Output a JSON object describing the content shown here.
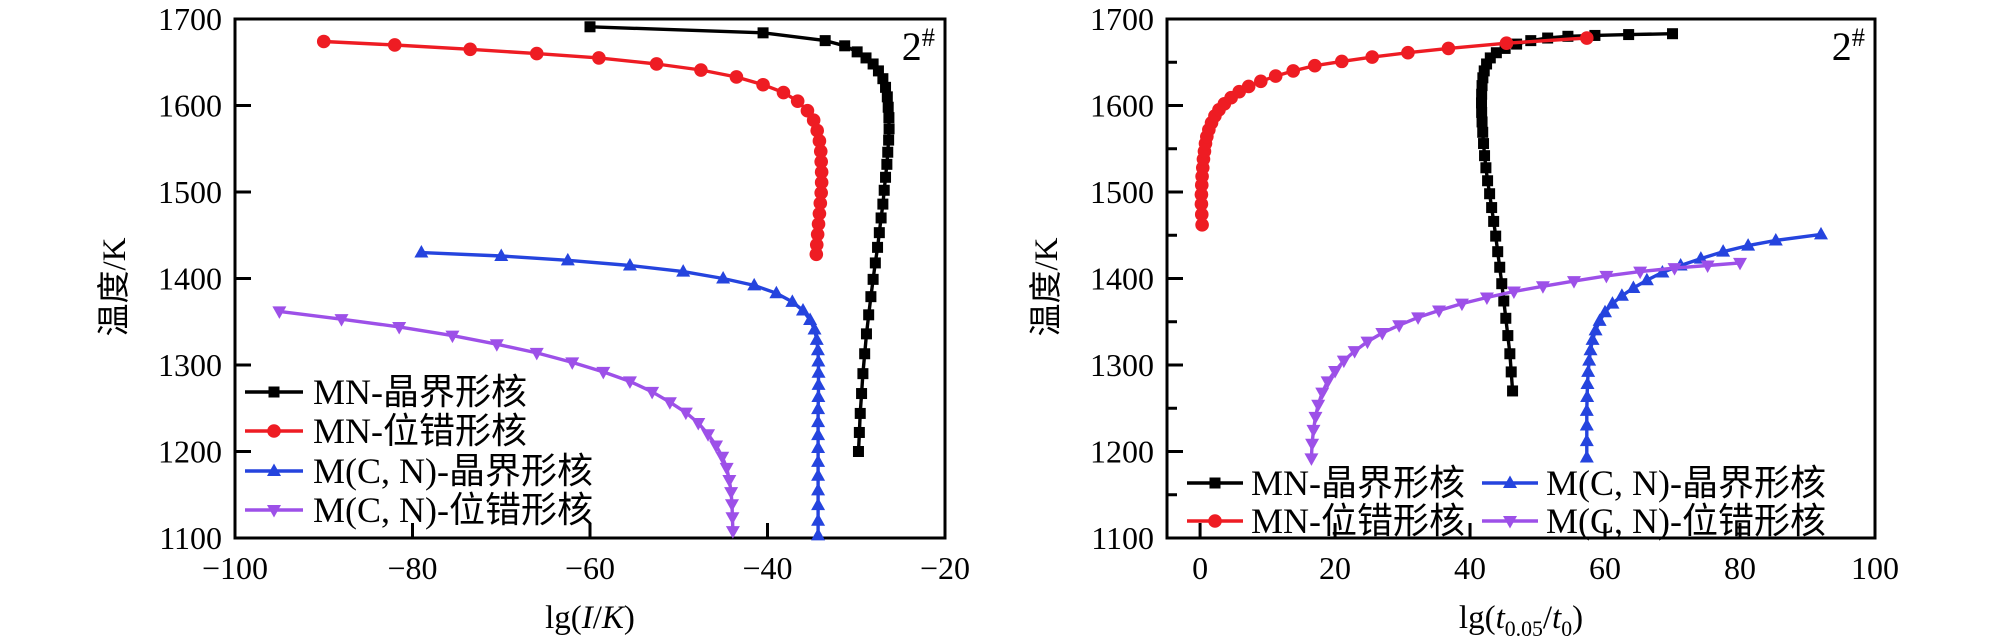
{
  "figure": {
    "background": "#ffffff",
    "text_color": "#000000"
  },
  "chart_data": [
    {
      "type": "line",
      "id": "left-chart",
      "title": "",
      "xlabel_plain": "lg(I/K)",
      "xlabel_segments": [
        {
          "t": "lg("
        },
        {
          "t": "I",
          "italic": true
        },
        {
          "t": "/"
        },
        {
          "t": "K",
          "italic": true
        },
        {
          "t": ")"
        }
      ],
      "ylabel": "温度/K",
      "xlim": [
        -100,
        -20
      ],
      "ylim": [
        1100,
        1700
      ],
      "x_major_ticks": [
        -100,
        -80,
        -60,
        -40,
        -20
      ],
      "x_minor_ticks": [],
      "y_major_ticks": [
        1100,
        1200,
        1300,
        1400,
        1500,
        1600,
        1700
      ],
      "y_minor_ticks": [],
      "grid": false,
      "legend_position": "lower-left",
      "annotation": {
        "text": "2#",
        "segments": [
          {
            "t": "2"
          },
          {
            "t": "#",
            "sup": true
          }
        ],
        "color": "#ee1c23",
        "position": "top-right"
      },
      "series": [
        {
          "key": "mn-grain-boundary",
          "name": "MN-晶界形核",
          "color": "#000000",
          "marker": "square",
          "points": [
            [
              -60,
              1691
            ],
            [
              -40.5,
              1684
            ],
            [
              -33.5,
              1675
            ],
            [
              -31.3,
              1669
            ],
            [
              -29.9,
              1662
            ],
            [
              -28.9,
              1655
            ],
            [
              -28.1,
              1648
            ],
            [
              -27.5,
              1640
            ],
            [
              -27.0,
              1631
            ],
            [
              -26.7,
              1621
            ],
            [
              -26.5,
              1610
            ],
            [
              -26.4,
              1598
            ],
            [
              -26.32,
              1586
            ],
            [
              -26.3,
              1573
            ],
            [
              -26.35,
              1560
            ],
            [
              -26.45,
              1546
            ],
            [
              -26.55,
              1532
            ],
            [
              -26.7,
              1517
            ],
            [
              -26.85,
              1502
            ],
            [
              -27.0,
              1486
            ],
            [
              -27.2,
              1470
            ],
            [
              -27.4,
              1453
            ],
            [
              -27.6,
              1436
            ],
            [
              -27.85,
              1418
            ],
            [
              -28.1,
              1399
            ],
            [
              -28.35,
              1379
            ],
            [
              -28.6,
              1358
            ],
            [
              -28.85,
              1336
            ],
            [
              -29.05,
              1313
            ],
            [
              -29.25,
              1290
            ],
            [
              -29.4,
              1267
            ],
            [
              -29.55,
              1244
            ],
            [
              -29.65,
              1222
            ],
            [
              -29.75,
              1200
            ]
          ]
        },
        {
          "key": "mn-dislocation",
          "name": "MN-位错形核",
          "color": "#ee1c23",
          "marker": "circle",
          "points": [
            [
              -90,
              1674
            ],
            [
              -82,
              1670
            ],
            [
              -73.5,
              1665
            ],
            [
              -66,
              1660
            ],
            [
              -59,
              1655
            ],
            [
              -52.5,
              1648
            ],
            [
              -47.5,
              1641
            ],
            [
              -43.5,
              1633
            ],
            [
              -40.5,
              1624
            ],
            [
              -38.2,
              1615
            ],
            [
              -36.6,
              1605
            ],
            [
              -35.5,
              1594
            ],
            [
              -34.8,
              1583
            ],
            [
              -34.4,
              1571
            ],
            [
              -34.15,
              1559
            ],
            [
              -34.0,
              1547
            ],
            [
              -33.95,
              1535
            ],
            [
              -33.9,
              1523
            ],
            [
              -33.9,
              1511
            ],
            [
              -33.95,
              1499
            ],
            [
              -34.05,
              1487
            ],
            [
              -34.15,
              1475
            ],
            [
              -34.25,
              1463
            ],
            [
              -34.35,
              1451
            ],
            [
              -34.45,
              1439
            ],
            [
              -34.5,
              1428
            ]
          ]
        },
        {
          "key": "mcn-grain-boundary",
          "name": "M(C, N)-晶界形核",
          "color": "#2544de",
          "marker": "triangle-up",
          "points": [
            [
              -79,
              1430
            ],
            [
              -70,
              1426
            ],
            [
              -62.5,
              1421
            ],
            [
              -55.5,
              1415
            ],
            [
              -49.5,
              1408
            ],
            [
              -45,
              1400
            ],
            [
              -41.5,
              1392
            ],
            [
              -39,
              1383
            ],
            [
              -37.2,
              1373
            ],
            [
              -36,
              1363
            ],
            [
              -35.2,
              1352
            ],
            [
              -34.7,
              1341
            ],
            [
              -34.45,
              1329
            ],
            [
              -34.32,
              1317
            ],
            [
              -34.27,
              1304
            ],
            [
              -34.25,
              1291
            ],
            [
              -34.25,
              1277
            ],
            [
              -34.27,
              1263
            ],
            [
              -34.3,
              1249
            ],
            [
              -34.3,
              1234
            ],
            [
              -34.3,
              1219
            ],
            [
              -34.3,
              1204
            ],
            [
              -34.3,
              1188
            ],
            [
              -34.3,
              1172
            ],
            [
              -34.3,
              1155
            ],
            [
              -34.3,
              1138
            ],
            [
              -34.3,
              1120
            ],
            [
              -34.3,
              1103
            ]
          ]
        },
        {
          "key": "mcn-dislocation",
          "name": "M(C, N)-位错形核",
          "color": "#9d50e8",
          "marker": "triangle-down",
          "points": [
            [
              -95,
              1362
            ],
            [
              -88,
              1353
            ],
            [
              -81.5,
              1344
            ],
            [
              -75.5,
              1334
            ],
            [
              -70.5,
              1324
            ],
            [
              -66,
              1314
            ],
            [
              -62,
              1303
            ],
            [
              -58.5,
              1292
            ],
            [
              -55.5,
              1281
            ],
            [
              -53,
              1269
            ],
            [
              -51,
              1257
            ],
            [
              -49.2,
              1245
            ],
            [
              -47.8,
              1233
            ],
            [
              -46.7,
              1220
            ],
            [
              -45.8,
              1207
            ],
            [
              -45.1,
              1194
            ],
            [
              -44.6,
              1181
            ],
            [
              -44.3,
              1167
            ],
            [
              -44.1,
              1153
            ],
            [
              -44.0,
              1139
            ],
            [
              -43.95,
              1124
            ],
            [
              -43.9,
              1108
            ]
          ]
        }
      ]
    },
    {
      "type": "line",
      "id": "right-chart",
      "title": "",
      "xlabel_plain": "lg(t0.05/t0)",
      "xlabel_segments": [
        {
          "t": "lg("
        },
        {
          "t": "t",
          "italic": true
        },
        {
          "t": "0.05",
          "sub": true
        },
        {
          "t": "/"
        },
        {
          "t": "t",
          "italic": true
        },
        {
          "t": "0",
          "sub": true
        },
        {
          "t": ")"
        }
      ],
      "ylabel": "温度/K",
      "xlim": [
        -4.9,
        100
      ],
      "ylim": [
        1100,
        1700
      ],
      "x_major_ticks": [
        0,
        20,
        40,
        60,
        80,
        100
      ],
      "x_minor_ticks": [],
      "y_major_ticks": [
        1100,
        1200,
        1300,
        1400,
        1500,
        1600,
        1700
      ],
      "y_minor_ticks": [
        1150,
        1250,
        1350,
        1450,
        1550,
        1650
      ],
      "grid": false,
      "legend_position": "lower-left-two-columns",
      "annotation": {
        "text": "2#",
        "segments": [
          {
            "t": "2"
          },
          {
            "t": "#",
            "sup": true
          }
        ],
        "color": "#ee1c23",
        "position": "top-right"
      },
      "series": [
        {
          "key": "mn-grain-boundary",
          "name": "MN-晶界形核",
          "color": "#000000",
          "marker": "square",
          "points": [
            [
              46.3,
              1270
            ],
            [
              46.1,
              1292
            ],
            [
              45.9,
              1313
            ],
            [
              45.6,
              1334
            ],
            [
              45.3,
              1354
            ],
            [
              45.0,
              1374
            ],
            [
              44.7,
              1394
            ],
            [
              44.4,
              1413
            ],
            [
              44.1,
              1431
            ],
            [
              43.8,
              1449
            ],
            [
              43.5,
              1466
            ],
            [
              43.2,
              1482
            ],
            [
              42.9,
              1498
            ],
            [
              42.6,
              1513
            ],
            [
              42.35,
              1528
            ],
            [
              42.15,
              1542
            ],
            [
              42.0,
              1556
            ],
            [
              41.88,
              1569
            ],
            [
              41.78,
              1581
            ],
            [
              41.72,
              1592
            ],
            [
              41.7,
              1603
            ],
            [
              41.72,
              1613
            ],
            [
              41.78,
              1623
            ],
            [
              41.9,
              1632
            ],
            [
              42.1,
              1640
            ],
            [
              42.45,
              1648
            ],
            [
              43.0,
              1655
            ],
            [
              43.9,
              1661
            ],
            [
              45.2,
              1666
            ],
            [
              46.9,
              1671
            ],
            [
              49.0,
              1675
            ],
            [
              51.5,
              1678
            ],
            [
              54.5,
              1680
            ],
            [
              58.5,
              1681
            ],
            [
              63.5,
              1682
            ],
            [
              70,
              1683
            ]
          ]
        },
        {
          "key": "mn-dislocation",
          "name": "MN-位错形核",
          "color": "#ee1c23",
          "marker": "circle",
          "points": [
            [
              0.3,
              1462
            ],
            [
              0.25,
              1474
            ],
            [
              0.2,
              1486
            ],
            [
              0.2,
              1497
            ],
            [
              0.25,
              1508
            ],
            [
              0.3,
              1518
            ],
            [
              0.4,
              1528
            ],
            [
              0.5,
              1538
            ],
            [
              0.65,
              1547
            ],
            [
              0.8,
              1556
            ],
            [
              1.0,
              1564
            ],
            [
              1.3,
              1572
            ],
            [
              1.7,
              1580
            ],
            [
              2.2,
              1588
            ],
            [
              2.8,
              1595
            ],
            [
              3.6,
              1602
            ],
            [
              4.6,
              1609
            ],
            [
              5.8,
              1616
            ],
            [
              7.2,
              1622
            ],
            [
              9.0,
              1628
            ],
            [
              11.2,
              1634
            ],
            [
              13.8,
              1640
            ],
            [
              17,
              1646
            ],
            [
              21,
              1651
            ],
            [
              25.5,
              1656
            ],
            [
              30.8,
              1661
            ],
            [
              36.8,
              1666
            ],
            [
              45.4,
              1672
            ],
            [
              57.3,
              1678
            ]
          ]
        },
        {
          "key": "mcn-grain-boundary",
          "name": "M(C, N)-晶界形核",
          "color": "#2544de",
          "marker": "triangle-up",
          "points": [
            [
              57.3,
              1193
            ],
            [
              57.3,
              1212
            ],
            [
              57.3,
              1230
            ],
            [
              57.3,
              1247
            ],
            [
              57.35,
              1263
            ],
            [
              57.4,
              1278
            ],
            [
              57.5,
              1292
            ],
            [
              57.65,
              1305
            ],
            [
              57.85,
              1317
            ],
            [
              58.15,
              1329
            ],
            [
              58.6,
              1340
            ],
            [
              59.2,
              1351
            ],
            [
              60.0,
              1361
            ],
            [
              61.1,
              1371
            ],
            [
              62.5,
              1380
            ],
            [
              64.2,
              1389
            ],
            [
              66.2,
              1398
            ],
            [
              68.5,
              1407
            ],
            [
              71.2,
              1415
            ],
            [
              74.2,
              1423
            ],
            [
              77.5,
              1431
            ],
            [
              81.2,
              1438
            ],
            [
              85.3,
              1444
            ],
            [
              92,
              1451
            ]
          ]
        },
        {
          "key": "mcn-dislocation",
          "name": "M(C, N)-位错形核",
          "color": "#9d50e8",
          "marker": "triangle-down",
          "points": [
            [
              16.5,
              1192
            ],
            [
              16.6,
              1209
            ],
            [
              16.8,
              1225
            ],
            [
              17.1,
              1240
            ],
            [
              17.5,
              1254
            ],
            [
              18.1,
              1268
            ],
            [
              18.9,
              1281
            ],
            [
              20.0,
              1293
            ],
            [
              21.3,
              1305
            ],
            [
              22.9,
              1316
            ],
            [
              24.8,
              1327
            ],
            [
              27.0,
              1337
            ],
            [
              29.5,
              1346
            ],
            [
              32.3,
              1355
            ],
            [
              35.4,
              1363
            ],
            [
              38.8,
              1371
            ],
            [
              42.5,
              1378
            ],
            [
              46.5,
              1385
            ],
            [
              50.8,
              1391
            ],
            [
              55.4,
              1397
            ],
            [
              60.2,
              1403
            ],
            [
              65.2,
              1408
            ],
            [
              70.3,
              1412
            ],
            [
              75.2,
              1415
            ],
            [
              80,
              1418
            ]
          ]
        }
      ]
    }
  ]
}
